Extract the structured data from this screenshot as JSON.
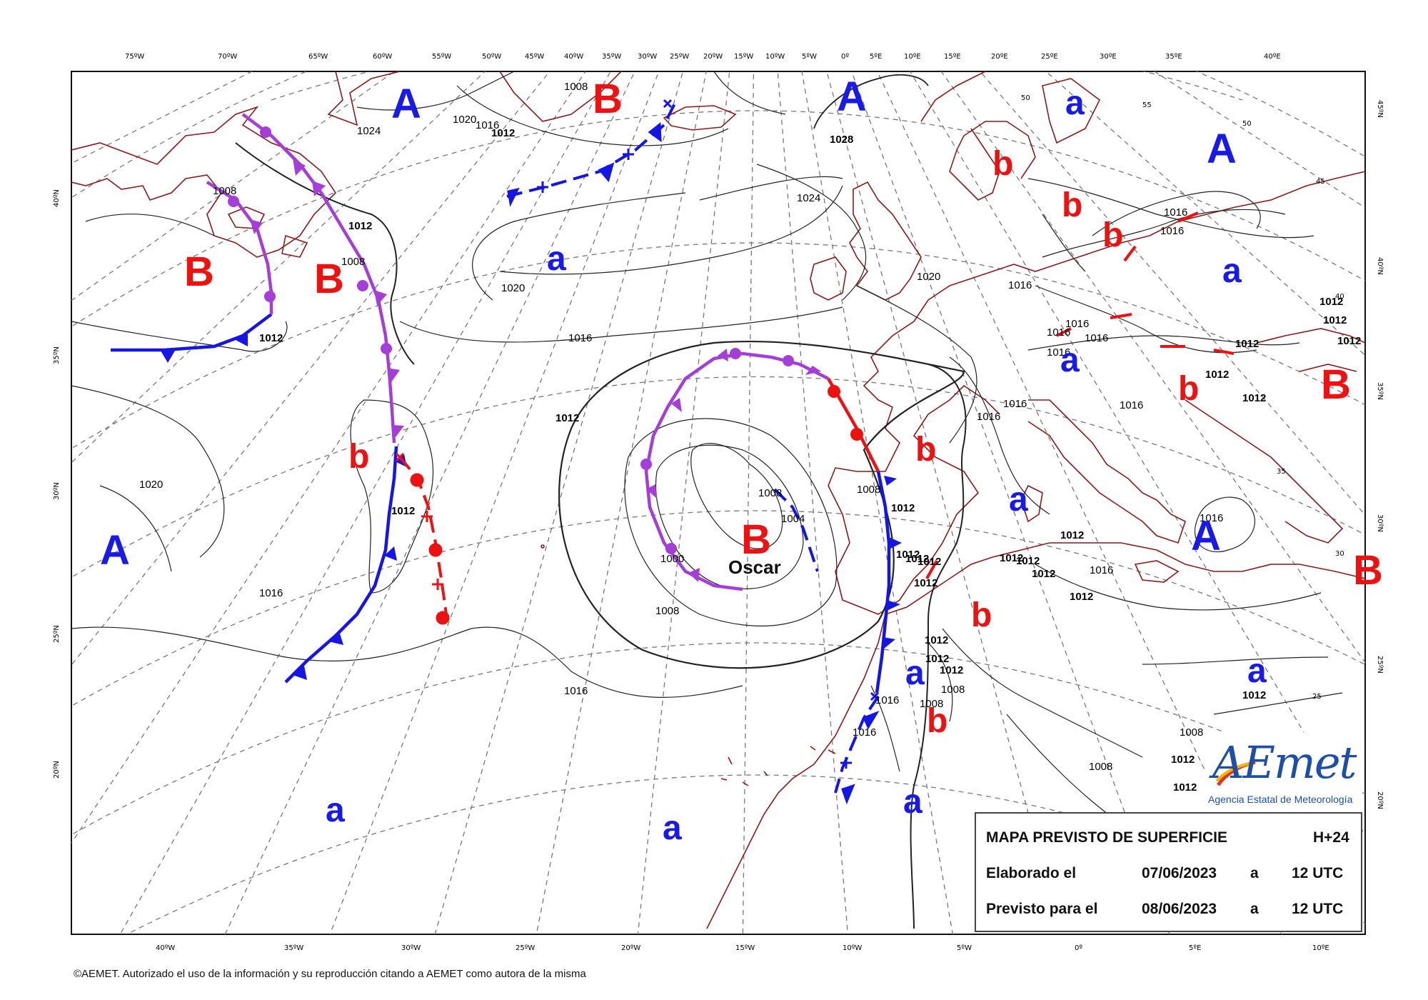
{
  "map": {
    "top_lon_labels": [
      "75ºW",
      "70ºW",
      "65ºW",
      "60ºW",
      "55ºW",
      "50ºW",
      "45ºW",
      "40ºW",
      "35ºW",
      "30ºW",
      "25ºW",
      "20ºW",
      "15ºW",
      "10ºW",
      "5ºW",
      "0º",
      "5ºE",
      "10ºE",
      "15ºE",
      "20ºE",
      "25ºE",
      "30ºE",
      "35ºE",
      "40ºE"
    ],
    "bottom_lon_labels": [
      "40ºW",
      "35ºW",
      "30ºW",
      "25ºW",
      "20ºW",
      "15ºW",
      "10ºW",
      "5ºW",
      "0º",
      "5ºE",
      "10ºE"
    ],
    "left_lat_labels": [
      "40ºN",
      "35ºN",
      "30ºN",
      "25ºN",
      "20ºN"
    ],
    "right_lat_labels": [
      "45ºN",
      "40ºN",
      "35ºN",
      "30ºN",
      "25ºN",
      "20ºN"
    ],
    "inner_lat_labels": [
      "55",
      "50",
      "45",
      "50",
      "40",
      "35",
      "30",
      "25"
    ],
    "isobar_labels": [
      "1008",
      "1016",
      "1012",
      "1024",
      "1020",
      "1028",
      "1008",
      "1024",
      "1012",
      "1008",
      "1012",
      "1020",
      "1020",
      "1016",
      "1016",
      "1012",
      "1008",
      "1004",
      "1000",
      "1008",
      "1016",
      "1016",
      "1012",
      "1020",
      "1016",
      "1016",
      "1012",
      "1016",
      "1008",
      "1012",
      "1012",
      "1012",
      "1012",
      "1012",
      "1012",
      "1016",
      "1012",
      "1012",
      "1008",
      "1016",
      "1008",
      "1016",
      "1012",
      "1016",
      "1016",
      "1016",
      "1012",
      "1016",
      "1016",
      "1016",
      "1012",
      "1012",
      "1012",
      "1012",
      "1012",
      "1016",
      "1012",
      "1012",
      "1012",
      "1012",
      "1008",
      "1008",
      "1012",
      "1012"
    ],
    "pressure_centers": [
      {
        "label": "A",
        "kind": "high-major"
      },
      {
        "label": "B",
        "kind": "low-major"
      },
      {
        "label": "A",
        "kind": "high-major"
      },
      {
        "label": "A",
        "kind": "high-major"
      },
      {
        "label": "B",
        "kind": "low-major"
      },
      {
        "label": "B",
        "kind": "low-major"
      },
      {
        "label": "B",
        "kind": "low-major"
      },
      {
        "label": "A",
        "kind": "high-major"
      },
      {
        "label": "B",
        "kind": "low-major"
      },
      {
        "label": "A",
        "kind": "high-major"
      },
      {
        "label": "B",
        "kind": "low-major"
      },
      {
        "label": "a",
        "kind": "high-minor"
      },
      {
        "label": "b",
        "kind": "low-minor"
      },
      {
        "label": "b",
        "kind": "low-minor"
      },
      {
        "label": "a",
        "kind": "high-minor"
      },
      {
        "label": "a",
        "kind": "high-minor"
      },
      {
        "label": "b",
        "kind": "low-minor"
      },
      {
        "label": "b",
        "kind": "low-minor"
      },
      {
        "label": "b",
        "kind": "low-minor"
      },
      {
        "label": "a",
        "kind": "high-minor"
      },
      {
        "label": "b",
        "kind": "low-minor"
      },
      {
        "label": "a",
        "kind": "high-minor"
      },
      {
        "label": "a",
        "kind": "high-minor"
      },
      {
        "label": "b",
        "kind": "low-minor"
      },
      {
        "label": "a",
        "kind": "high-minor"
      },
      {
        "label": "a",
        "kind": "high-minor"
      },
      {
        "label": "a",
        "kind": "high-minor"
      },
      {
        "label": "a",
        "kind": "high-minor"
      },
      {
        "label": "b",
        "kind": "low-minor"
      }
    ],
    "storm_name": "Oscar",
    "colors": {
      "cold_front": "#1515e6",
      "warm_front": "#ee1111",
      "occluded_front": "#a43ed6",
      "coastline": "#8b1a1a",
      "isobar": "#222222",
      "grid": "#777777",
      "high": "#1a1ae6",
      "low": "#ee1111"
    }
  },
  "legend": {
    "title": "MAPA PREVISTO DE SUPERFICIE",
    "forecast_hour": "H+24",
    "made_label": "Elaborado el",
    "made_date": "07/06/2023",
    "made_a": "a",
    "made_time": "12 UTC",
    "valid_label": "Previsto para el",
    "valid_date": "08/06/2023",
    "valid_a": "a",
    "valid_time": "12 UTC"
  },
  "logo": {
    "brand": "AEmet",
    "subtitle": "Agencia Estatal de Meteorología"
  },
  "copyright": "©AEMET. Autorizado el uso de la información y su reproducción citando a AEMET como autora de la misma"
}
